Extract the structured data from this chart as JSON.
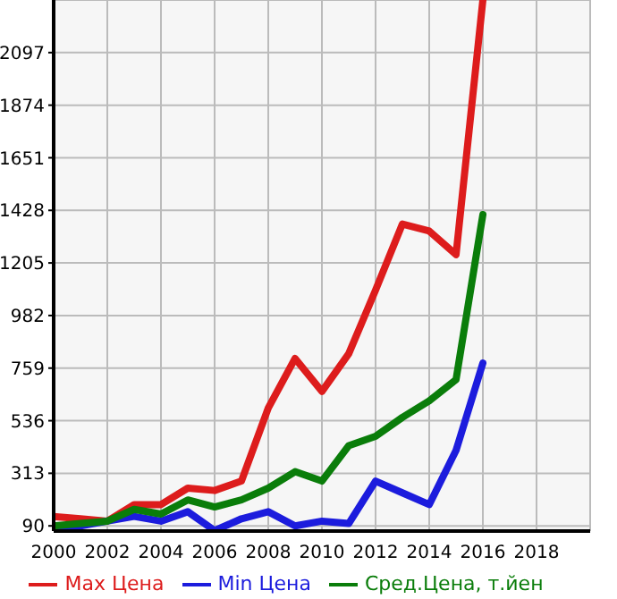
{
  "chart_data": {
    "type": "line",
    "x": [
      2000,
      2001,
      2002,
      2003,
      2004,
      2005,
      2006,
      2007,
      2008,
      2009,
      2010,
      2011,
      2012,
      2013,
      2014,
      2015,
      2016
    ],
    "series": [
      {
        "name": "Max Цена",
        "color": "#dd1c1c",
        "values": [
          130,
          120,
          110,
          180,
          180,
          250,
          240,
          280,
          590,
          800,
          660,
          820,
          1090,
          1370,
          1340,
          1240,
          2320
        ]
      },
      {
        "name": "Min Цена",
        "color": "#1c1cdd",
        "values": [
          80,
          90,
          110,
          130,
          110,
          150,
          70,
          120,
          150,
          90,
          110,
          100,
          280,
          230,
          180,
          410,
          780
        ]
      },
      {
        "name": "Сред.Цена, т.йен",
        "color": "#0a7d0a",
        "values": [
          90,
          100,
          110,
          160,
          140,
          200,
          170,
          200,
          250,
          320,
          280,
          430,
          470,
          550,
          620,
          710,
          1410
        ]
      }
    ],
    "xlim": [
      2000,
      2020
    ],
    "xticks": [
      2000,
      2002,
      2004,
      2006,
      2008,
      2010,
      2012,
      2014,
      2016,
      2018
    ],
    "ylim": [
      68,
      2320
    ],
    "yticks": [
      90,
      313,
      536,
      759,
      982,
      1205,
      1428,
      1651,
      1874,
      2097
    ],
    "grid": true,
    "legend": "bottom",
    "marker": "none",
    "line_style": "solid"
  }
}
